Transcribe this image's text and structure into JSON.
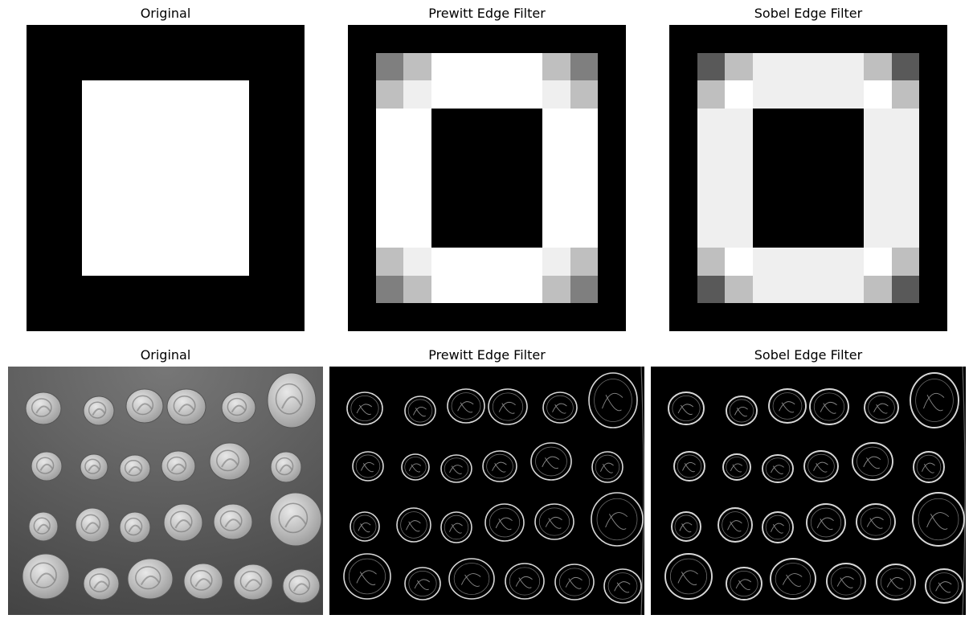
{
  "panels": [
    {
      "title": "Original"
    },
    {
      "title": "Prewitt Edge Filter"
    },
    {
      "title": "Sobel Edge Filter"
    },
    {
      "title": "Original"
    },
    {
      "title": "Prewitt Edge Filter"
    },
    {
      "title": "Sobel Edge Filter"
    }
  ],
  "colors": {
    "background": "#ffffff",
    "black": "#000000",
    "white": "#ffffff",
    "coin_bg": "#5a5a5a"
  }
}
